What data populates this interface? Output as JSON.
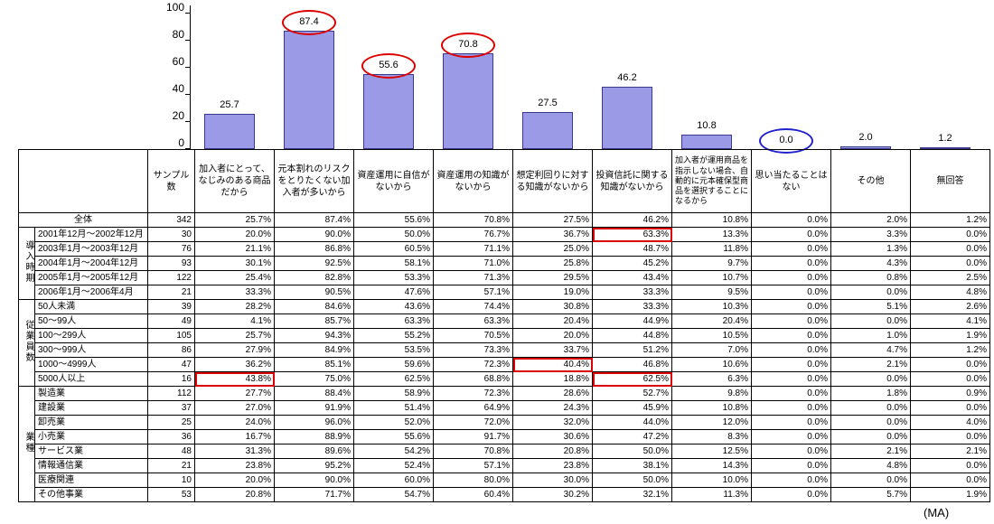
{
  "footer_note": "(MA)",
  "chart_data": {
    "type": "bar",
    "title": "",
    "xlabel": "",
    "ylabel": "",
    "ylim": [
      0,
      100
    ],
    "yticks": [
      0,
      20,
      40,
      60,
      80,
      100
    ],
    "grid": false,
    "legend": "none",
    "bar_fill": "#9a9ae6",
    "bar_border": "#3a3a8c",
    "categories": [
      "加入者にとって、なじみのある商品だから",
      "元本割れのリスクをとりたくない加入者が多いから",
      "資産運用に自信がないから",
      "資産運用の知識がないから",
      "想定利回りに対する知識がないから",
      "投資信託に関する知識がないから",
      "加入者が運用商品を指示しない場合、自動的に元本確保型商品を選択することになるから",
      "思い当たることはない",
      "その他",
      "無回答"
    ],
    "values": [
      25.7,
      87.4,
      55.6,
      70.8,
      27.5,
      46.2,
      10.8,
      0.0,
      2.0,
      1.2
    ],
    "label_annotations": [
      {
        "index": 1,
        "shape": "ellipse",
        "color": "#dd0000"
      },
      {
        "index": 2,
        "shape": "ellipse",
        "color": "#dd0000"
      },
      {
        "index": 3,
        "shape": "ellipse",
        "color": "#dd0000"
      },
      {
        "index": 7,
        "shape": "ellipse",
        "color": "#2222cc"
      }
    ]
  },
  "table": {
    "sample_header": "サンプル数",
    "highlight_color": "#dd0000",
    "cell_highlights": [
      {
        "group": 1,
        "row": 0,
        "col": 5
      },
      {
        "group": 2,
        "row": 4,
        "col": 4
      },
      {
        "group": 2,
        "row": 5,
        "col": 0
      },
      {
        "group": 2,
        "row": 5,
        "col": 5
      }
    ],
    "groups": [
      {
        "name": "",
        "rows": [
          {
            "label": "全体",
            "n": "342",
            "values": [
              "25.7%",
              "87.4%",
              "55.6%",
              "70.8%",
              "27.5%",
              "46.2%",
              "10.8%",
              "0.0%",
              "2.0%",
              "1.2%"
            ]
          }
        ]
      },
      {
        "name": "導入時期",
        "rows": [
          {
            "label": "2001年12月～2002年12月",
            "n": "30",
            "values": [
              "20.0%",
              "90.0%",
              "50.0%",
              "76.7%",
              "36.7%",
              "63.3%",
              "13.3%",
              "0.0%",
              "3.3%",
              "0.0%"
            ]
          },
          {
            "label": "2003年1月～2003年12月",
            "n": "76",
            "values": [
              "21.1%",
              "86.8%",
              "60.5%",
              "71.1%",
              "25.0%",
              "48.7%",
              "11.8%",
              "0.0%",
              "1.3%",
              "0.0%"
            ]
          },
          {
            "label": "2004年1月～2004年12月",
            "n": "93",
            "values": [
              "30.1%",
              "92.5%",
              "58.1%",
              "71.0%",
              "25.8%",
              "45.2%",
              "9.7%",
              "0.0%",
              "4.3%",
              "0.0%"
            ]
          },
          {
            "label": "2005年1月～2005年12月",
            "n": "122",
            "values": [
              "25.4%",
              "82.8%",
              "53.3%",
              "71.3%",
              "29.5%",
              "43.4%",
              "10.7%",
              "0.0%",
              "0.8%",
              "2.5%"
            ]
          },
          {
            "label": "2006年1月～2006年4月",
            "n": "21",
            "values": [
              "33.3%",
              "90.5%",
              "47.6%",
              "57.1%",
              "19.0%",
              "33.3%",
              "9.5%",
              "0.0%",
              "0.0%",
              "4.8%"
            ]
          }
        ]
      },
      {
        "name": "従業員数",
        "rows": [
          {
            "label": "50人未満",
            "n": "39",
            "values": [
              "28.2%",
              "84.6%",
              "43.6%",
              "74.4%",
              "30.8%",
              "33.3%",
              "10.3%",
              "0.0%",
              "5.1%",
              "2.6%"
            ]
          },
          {
            "label": "50～99人",
            "n": "49",
            "values": [
              "4.1%",
              "85.7%",
              "63.3%",
              "63.3%",
              "20.4%",
              "44.9%",
              "20.4%",
              "0.0%",
              "0.0%",
              "4.1%"
            ]
          },
          {
            "label": "100～299人",
            "n": "105",
            "values": [
              "25.7%",
              "94.3%",
              "55.2%",
              "70.5%",
              "20.0%",
              "44.8%",
              "10.5%",
              "0.0%",
              "1.0%",
              "1.9%"
            ]
          },
          {
            "label": "300～999人",
            "n": "86",
            "values": [
              "27.9%",
              "84.9%",
              "53.5%",
              "73.3%",
              "33.7%",
              "51.2%",
              "7.0%",
              "0.0%",
              "4.7%",
              "1.2%"
            ]
          },
          {
            "label": "1000～4999人",
            "n": "47",
            "values": [
              "36.2%",
              "85.1%",
              "59.6%",
              "72.3%",
              "40.4%",
              "46.8%",
              "10.6%",
              "0.0%",
              "2.1%",
              "0.0%"
            ]
          },
          {
            "label": "5000人以上",
            "n": "16",
            "values": [
              "43.8%",
              "75.0%",
              "62.5%",
              "68.8%",
              "18.8%",
              "62.5%",
              "6.3%",
              "0.0%",
              "0.0%",
              "0.0%"
            ]
          }
        ]
      },
      {
        "name": "業種",
        "rows": [
          {
            "label": "製造業",
            "n": "112",
            "values": [
              "27.7%",
              "88.4%",
              "58.9%",
              "72.3%",
              "28.6%",
              "52.7%",
              "9.8%",
              "0.0%",
              "1.8%",
              "0.9%"
            ]
          },
          {
            "label": "建設業",
            "n": "37",
            "values": [
              "27.0%",
              "91.9%",
              "51.4%",
              "64.9%",
              "24.3%",
              "45.9%",
              "10.8%",
              "0.0%",
              "0.0%",
              "0.0%"
            ]
          },
          {
            "label": "卸売業",
            "n": "25",
            "values": [
              "24.0%",
              "96.0%",
              "52.0%",
              "72.0%",
              "32.0%",
              "44.0%",
              "12.0%",
              "0.0%",
              "0.0%",
              "4.0%"
            ]
          },
          {
            "label": "小売業",
            "n": "36",
            "values": [
              "16.7%",
              "88.9%",
              "55.6%",
              "91.7%",
              "30.6%",
              "47.2%",
              "8.3%",
              "0.0%",
              "0.0%",
              "0.0%"
            ]
          },
          {
            "label": "サービス業",
            "n": "48",
            "values": [
              "31.3%",
              "89.6%",
              "54.2%",
              "70.8%",
              "20.8%",
              "50.0%",
              "12.5%",
              "0.0%",
              "2.1%",
              "2.1%"
            ]
          },
          {
            "label": "情報通信業",
            "n": "21",
            "values": [
              "23.8%",
              "95.2%",
              "52.4%",
              "57.1%",
              "23.8%",
              "38.1%",
              "14.3%",
              "0.0%",
              "4.8%",
              "0.0%"
            ]
          },
          {
            "label": "医療関連",
            "n": "10",
            "values": [
              "20.0%",
              "90.0%",
              "60.0%",
              "80.0%",
              "30.0%",
              "50.0%",
              "10.0%",
              "0.0%",
              "0.0%",
              "0.0%"
            ]
          },
          {
            "label": "その他事業",
            "n": "53",
            "values": [
              "20.8%",
              "71.7%",
              "54.7%",
              "60.4%",
              "30.2%",
              "32.1%",
              "11.3%",
              "0.0%",
              "5.7%",
              "1.9%"
            ]
          }
        ]
      }
    ]
  }
}
